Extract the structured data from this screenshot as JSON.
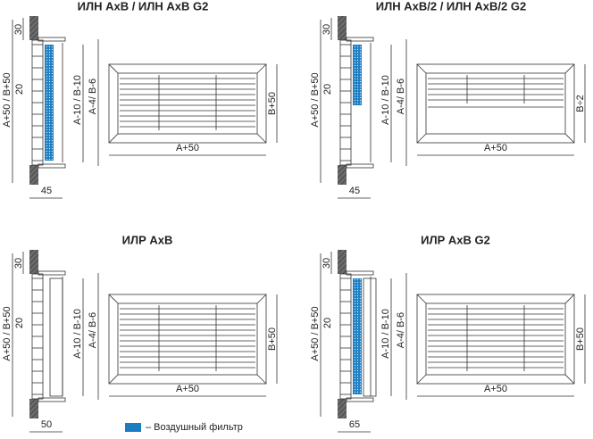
{
  "panels": [
    {
      "title": "ИЛН АхВ / ИЛН АхВ G2",
      "top_depth": "30",
      "overall": "A+50 / B+50",
      "pitch": "20",
      "inner": "A-10 / B-10",
      "opening": "A-4/ B-6",
      "height": "B+50",
      "width": "A+50",
      "depth": "45"
    },
    {
      "title": "ИЛН АхВ/2 / ИЛН АхВ/2 G2",
      "top_depth": "30",
      "overall": "A+50 / B+50",
      "pitch": "20",
      "inner": "A-10 / B-10",
      "opening": "A-4/ B-6",
      "height": "B÷2",
      "width": "A+50",
      "depth": "45"
    },
    {
      "title": "ИЛР АхВ",
      "top_depth": "30",
      "overall": "A+50 / B+50",
      "pitch": "20",
      "inner": "A-10 / B-10",
      "opening": "A-4/ B-6",
      "height": "B+50",
      "width": "A+50",
      "depth": "50"
    },
    {
      "title": "ИЛР АхВ G2",
      "top_depth": "30",
      "overall": "A+50 / B+50",
      "pitch": "20",
      "inner": "A-10 / B-10",
      "opening": "A-4/ B-6",
      "height": "B+50",
      "width": "A+50",
      "depth": "65"
    }
  ],
  "legend": {
    "label": "– Воздушный фильтр"
  }
}
